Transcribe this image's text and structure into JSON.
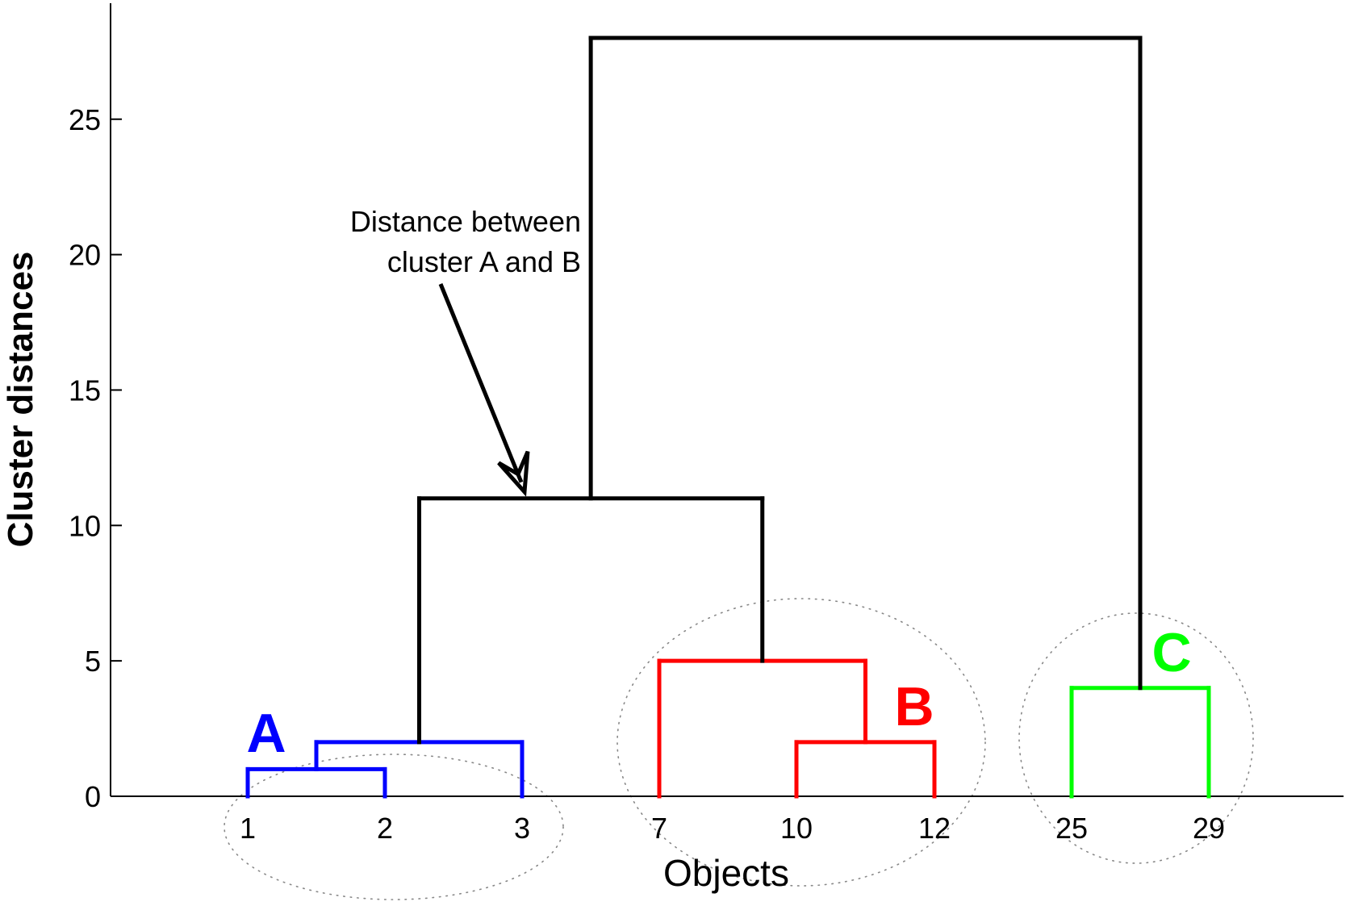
{
  "chart_data": {
    "type": "dendrogram",
    "xlabel": "Objects",
    "ylabel": "Cluster distances",
    "ylim": [
      0,
      28
    ],
    "y_ticks": [
      0,
      5,
      10,
      15,
      20,
      25
    ],
    "leaves": [
      "1",
      "2",
      "3",
      "7",
      "10",
      "12",
      "25",
      "29"
    ],
    "merges": [
      {
        "left": "1",
        "right": "2",
        "height": 1,
        "color": "#0000ff"
      },
      {
        "left": "1+2",
        "right": "3",
        "height": 2,
        "color": "#0000ff"
      },
      {
        "left": "10",
        "right": "12",
        "height": 2,
        "color": "#ff0000"
      },
      {
        "left": "7",
        "right": "10+12",
        "height": 5,
        "color": "#ff0000"
      },
      {
        "left": "25",
        "right": "29",
        "height": 4,
        "color": "#00ff00"
      },
      {
        "left": "A",
        "right": "B",
        "height": 11,
        "color": "#000000"
      },
      {
        "left": "A+B",
        "right": "C",
        "height": 28,
        "color": "#000000"
      }
    ],
    "clusters": [
      {
        "label": "A",
        "members": [
          "1",
          "2",
          "3"
        ],
        "color": "#0000ff"
      },
      {
        "label": "B",
        "members": [
          "7",
          "10",
          "12"
        ],
        "color": "#ff0000"
      },
      {
        "label": "C",
        "members": [
          "25",
          "29"
        ],
        "color": "#00ff00"
      }
    ],
    "annotation": {
      "line1": "Distance between",
      "line2": "cluster A and B",
      "points_to_height": 11
    },
    "grid": false
  }
}
